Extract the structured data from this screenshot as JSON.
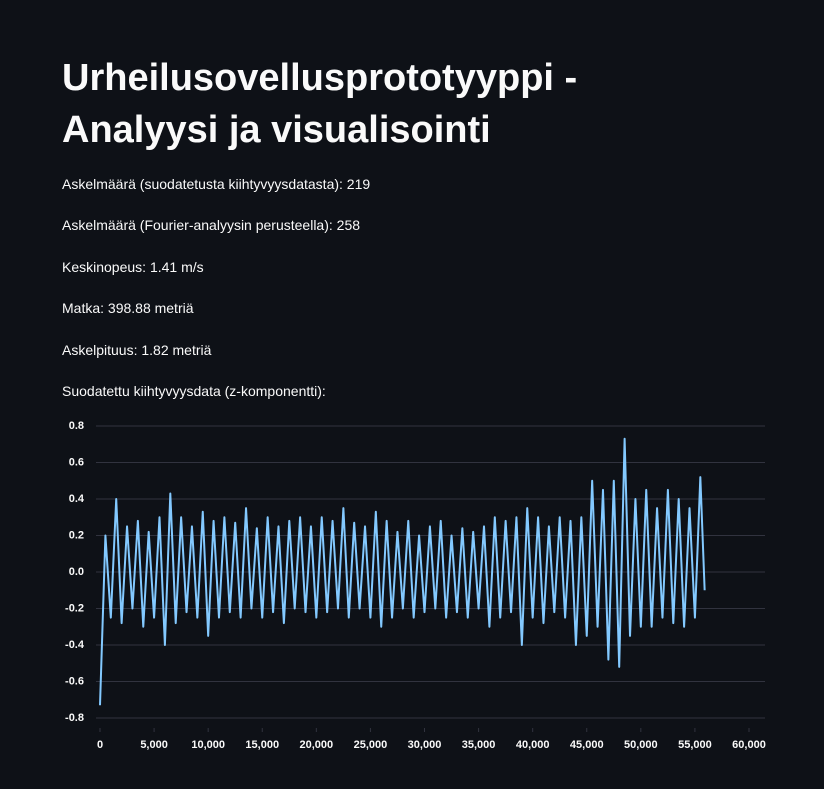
{
  "header": {
    "title": "Urheilusovellusprototyyppi - Analyysi ja visualisointi"
  },
  "paragraphs": [
    "Askelmäärä (suodatetusta kiihtyvyysdatasta): 219",
    "Askelmäärä (Fourier-analyysin perusteella): 258",
    "Keskinopeus: 1.41 m/s",
    "Matka: 398.88 metriä",
    "Askelpituus: 1.82 metriä",
    "Suodatettu kiihtyvyysdata (z-komponentti):"
  ],
  "chart_data": {
    "type": "line",
    "color": "#83c9ff",
    "grid": true,
    "xlim": [
      0,
      60000
    ],
    "ylim": [
      -0.8,
      0.8
    ],
    "xticks": [
      0,
      {
        "value": 5000,
        "label": "5,000"
      },
      {
        "value": 10000,
        "label": "10,000"
      },
      {
        "value": 15000,
        "label": "15,000"
      },
      {
        "value": 20000,
        "label": "20,000"
      },
      {
        "value": 25000,
        "label": "25,000"
      },
      {
        "value": 30000,
        "label": "30,000"
      },
      {
        "value": 35000,
        "label": "35,000"
      },
      {
        "value": 40000,
        "label": "40,000"
      },
      {
        "value": 45000,
        "label": "45,000"
      },
      {
        "value": 50000,
        "label": "50,000"
      },
      {
        "value": 55000,
        "label": "55,000"
      },
      {
        "value": 60000,
        "label": "60,000"
      }
    ],
    "yticks": [
      0.8,
      0.6,
      0.4,
      0.2,
      {
        "value": 0,
        "label": "0.0"
      },
      -0.2,
      -0.4,
      -0.6,
      -0.8
    ],
    "x": [
      0,
      500,
      1000,
      1500,
      2000,
      2500,
      3000,
      3500,
      4000,
      4500,
      5000,
      5500,
      6000,
      6500,
      7000,
      7500,
      8000,
      8500,
      9000,
      9500,
      10000,
      10500,
      11000,
      11500,
      12000,
      12500,
      13000,
      13500,
      14000,
      14500,
      15000,
      15500,
      16000,
      16500,
      17000,
      17500,
      18000,
      18500,
      19000,
      19500,
      20000,
      20500,
      21000,
      21500,
      22000,
      22500,
      23000,
      23500,
      24000,
      24500,
      25000,
      25500,
      26000,
      26500,
      27000,
      27500,
      28000,
      28500,
      29000,
      29500,
      30000,
      30500,
      31000,
      31500,
      32000,
      32500,
      33000,
      33500,
      34000,
      34500,
      35000,
      35500,
      36000,
      36500,
      37000,
      37500,
      38000,
      38500,
      39000,
      39500,
      40000,
      40500,
      41000,
      41500,
      42000,
      42500,
      43000,
      43500,
      44000,
      44500,
      45000,
      45500,
      46000,
      46500,
      47000,
      47500,
      48000,
      48500,
      49000,
      49500,
      50000,
      50500,
      51000,
      51500,
      52000,
      52500,
      53000,
      53500,
      54000,
      54500,
      55000,
      55500,
      55900
    ],
    "values": [
      -0.73,
      0.2,
      -0.25,
      0.4,
      -0.28,
      0.25,
      -0.2,
      0.28,
      -0.3,
      0.22,
      -0.25,
      0.3,
      -0.4,
      0.43,
      -0.28,
      0.3,
      -0.22,
      0.25,
      -0.25,
      0.33,
      -0.35,
      0.28,
      -0.25,
      0.3,
      -0.22,
      0.27,
      -0.25,
      0.35,
      -0.2,
      0.24,
      -0.25,
      0.3,
      -0.22,
      0.25,
      -0.28,
      0.28,
      -0.2,
      0.3,
      -0.22,
      0.25,
      -0.25,
      0.3,
      -0.22,
      0.28,
      -0.2,
      0.35,
      -0.25,
      0.27,
      -0.2,
      0.25,
      -0.25,
      0.33,
      -0.3,
      0.28,
      -0.25,
      0.22,
      -0.2,
      0.28,
      -0.25,
      0.2,
      -0.22,
      0.25,
      -0.2,
      0.28,
      -0.25,
      0.2,
      -0.22,
      0.24,
      -0.25,
      0.22,
      -0.2,
      0.25,
      -0.3,
      0.3,
      -0.25,
      0.28,
      -0.22,
      0.3,
      -0.4,
      0.35,
      -0.25,
      0.3,
      -0.28,
      0.25,
      -0.22,
      0.3,
      -0.25,
      0.28,
      -0.4,
      0.3,
      -0.35,
      0.5,
      -0.3,
      0.45,
      -0.48,
      0.5,
      -0.52,
      0.73,
      -0.35,
      0.4,
      -0.3,
      0.45,
      -0.3,
      0.35,
      -0.25,
      0.45,
      -0.28,
      0.4,
      -0.3,
      0.35,
      -0.25,
      0.52,
      -0.1
    ]
  }
}
